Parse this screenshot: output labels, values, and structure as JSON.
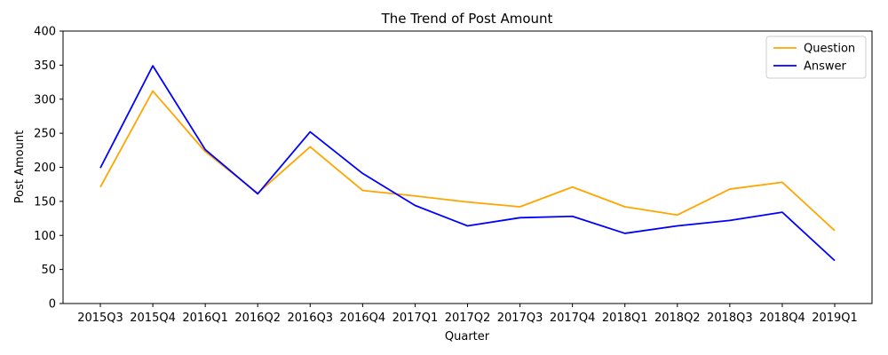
{
  "chart_data": {
    "type": "line",
    "title": "The Trend of Post Amount",
    "xlabel": "Quarter",
    "ylabel": "Post Amount",
    "categories": [
      "2015Q3",
      "2015Q4",
      "2016Q1",
      "2016Q2",
      "2016Q3",
      "2016Q4",
      "2017Q1",
      "2017Q2",
      "2017Q3",
      "2017Q4",
      "2018Q1",
      "2018Q2",
      "2018Q3",
      "2018Q4",
      "2019Q1"
    ],
    "ylim": [
      0,
      400
    ],
    "yticks": [
      0,
      50,
      100,
      150,
      200,
      250,
      300,
      350,
      400
    ],
    "grid": false,
    "legend_position": "top-right",
    "series": [
      {
        "name": "Question",
        "color": "#ffa500",
        "values": [
          171,
          312,
          223,
          162,
          230,
          166,
          158,
          149,
          142,
          171,
          142,
          130,
          168,
          178,
          107
        ]
      },
      {
        "name": "Answer",
        "color": "#0000ff",
        "values": [
          199,
          349,
          226,
          161,
          252,
          191,
          144,
          114,
          126,
          128,
          103,
          114,
          122,
          134,
          63
        ]
      }
    ]
  }
}
